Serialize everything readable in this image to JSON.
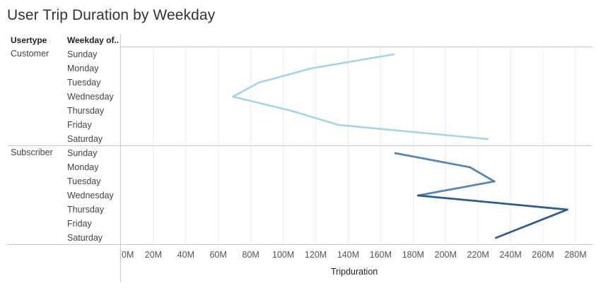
{
  "title": "User Trip Duration by Weekday",
  "header": {
    "usertype_label": "Usertype",
    "weekday_label": "Weekday of.."
  },
  "colors": {
    "customer": "#a7d3e9",
    "subscriber_light": "#5888b0",
    "subscriber_dark": "#2e5d8c",
    "gridline": "#ececec",
    "divider": "#c8c8c8"
  },
  "chart_data": {
    "type": "line",
    "orientation": "horizontal",
    "title": "User Trip Duration by Weekday",
    "xlabel": "Tripduration",
    "xlim": [
      0,
      290000000
    ],
    "x_ticks": [
      0,
      20000000,
      40000000,
      60000000,
      80000000,
      100000000,
      120000000,
      140000000,
      160000000,
      180000000,
      200000000,
      220000000,
      240000000,
      260000000,
      280000000
    ],
    "x_tick_labels": [
      "0M",
      "20M",
      "40M",
      "60M",
      "80M",
      "100M",
      "120M",
      "140M",
      "160M",
      "180M",
      "200M",
      "220M",
      "240M",
      "260M",
      "280M"
    ],
    "categories": [
      "Sunday",
      "Monday",
      "Tuesday",
      "Wednesday",
      "Thursday",
      "Friday",
      "Saturday"
    ],
    "grid": "vertical",
    "series": [
      {
        "name": "Customer",
        "values": [
          168000000,
          117000000,
          85000000,
          69000000,
          105000000,
          134000000,
          226000000
        ]
      },
      {
        "name": "Subscriber",
        "values": [
          169000000,
          215000000,
          230000000,
          183000000,
          275000000,
          253000000,
          231000000
        ]
      }
    ]
  }
}
